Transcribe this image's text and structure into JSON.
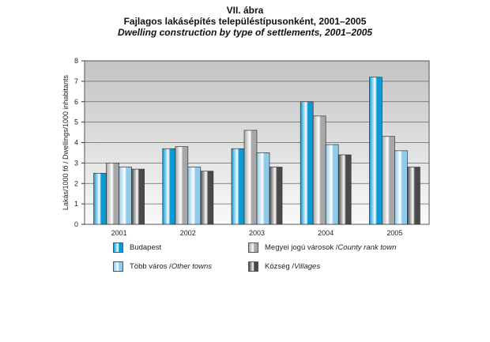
{
  "title": {
    "line1": "VII. ábra",
    "line2": "Fajlagos lakásépítés településtípusonként, 2001–2005",
    "line3": "Dwelling construction by type of settlements, 2001–2005"
  },
  "chart_data": {
    "type": "bar",
    "categories": [
      "2001",
      "2002",
      "2003",
      "2004",
      "2005"
    ],
    "ylabel": "Lakás/1000 fő / Dwellings/1000 inhabitants",
    "xlabel": "",
    "ylim": [
      0,
      8
    ],
    "yticks": [
      "0",
      "1",
      "2",
      "3",
      "4",
      "5",
      "6",
      "7",
      "8"
    ],
    "grid": true,
    "legend": "bottom",
    "series": [
      {
        "name": "Budapest",
        "name_en": "",
        "color": "#0a9bd6",
        "values": [
          2.5,
          3.7,
          3.7,
          6.0,
          7.2
        ]
      },
      {
        "name": "Megyei jogú városok / ",
        "name_en": "County rank town",
        "color": "#a8a8a8",
        "values": [
          3.0,
          3.8,
          4.6,
          5.3,
          4.3
        ]
      },
      {
        "name": "Több város / ",
        "name_en": "Other towns",
        "color": "#8fcbea",
        "values": [
          2.8,
          2.8,
          3.5,
          3.9,
          3.6
        ]
      },
      {
        "name": "Község / ",
        "name_en": "Villages",
        "color": "#4a4a4a",
        "values": [
          2.7,
          2.6,
          2.8,
          3.4,
          2.8
        ]
      }
    ]
  }
}
